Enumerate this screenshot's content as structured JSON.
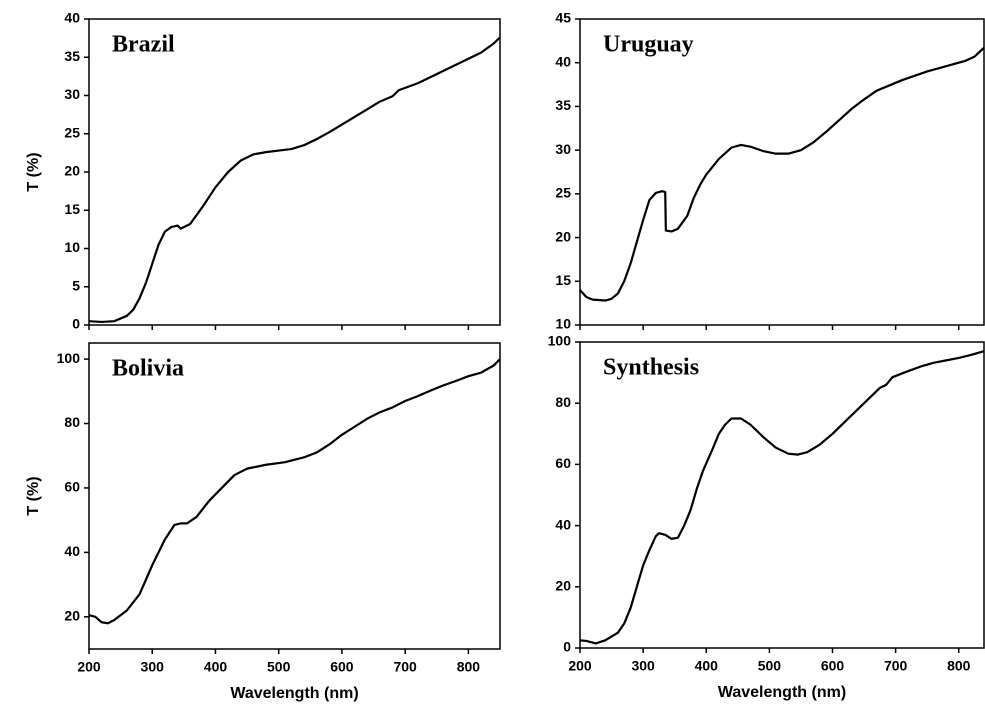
{
  "chart_data": [
    {
      "type": "line",
      "annotation": "Brazil",
      "ylabel": "T (%)",
      "xlim": [
        200,
        850
      ],
      "ylim": [
        0,
        40
      ],
      "xticks": [
        200,
        300,
        400,
        500,
        600,
        700,
        800
      ],
      "show_xtick_labels": false,
      "yticks": [
        0,
        5,
        10,
        15,
        20,
        25,
        30,
        35,
        40
      ],
      "color": "#000000",
      "x": [
        200,
        220,
        240,
        260,
        270,
        280,
        290,
        300,
        310,
        320,
        330,
        340,
        345,
        360,
        380,
        400,
        420,
        440,
        460,
        480,
        500,
        520,
        540,
        560,
        580,
        600,
        620,
        640,
        660,
        680,
        690,
        700,
        720,
        740,
        760,
        780,
        800,
        820,
        840,
        850
      ],
      "values": [
        0.5,
        0.4,
        0.5,
        1.2,
        2,
        3.5,
        5.5,
        8,
        10.5,
        12.2,
        12.8,
        13,
        12.6,
        13.2,
        15.5,
        18,
        20,
        21.5,
        22.3,
        22.6,
        22.8,
        23,
        23.5,
        24.3,
        25.2,
        26.2,
        27.2,
        28.2,
        29.2,
        29.9,
        30.7,
        31,
        31.6,
        32.4,
        33.2,
        34,
        34.8,
        35.6,
        36.8,
        37.6
      ]
    },
    {
      "type": "line",
      "annotation": "Uruguay",
      "xlim": [
        200,
        840
      ],
      "ylim": [
        10,
        45
      ],
      "xticks": [
        200,
        300,
        400,
        500,
        600,
        700,
        800
      ],
      "show_xtick_labels": false,
      "yticks": [
        10,
        15,
        20,
        25,
        30,
        35,
        40,
        45
      ],
      "color": "#000000",
      "x": [
        200,
        210,
        220,
        240,
        250,
        260,
        270,
        280,
        290,
        300,
        310,
        320,
        330,
        335,
        336,
        345,
        355,
        370,
        380,
        390,
        400,
        420,
        440,
        455,
        470,
        490,
        510,
        530,
        550,
        570,
        590,
        610,
        630,
        650,
        670,
        690,
        710,
        730,
        750,
        770,
        790,
        810,
        825,
        840
      ],
      "values": [
        14,
        13.2,
        12.9,
        12.8,
        13,
        13.6,
        15,
        17,
        19.5,
        22,
        24.3,
        25.1,
        25.3,
        25.2,
        20.8,
        20.7,
        21,
        22.5,
        24.5,
        26,
        27.2,
        29,
        30.3,
        30.6,
        30.4,
        29.9,
        29.6,
        29.6,
        30,
        30.9,
        32.1,
        33.4,
        34.7,
        35.8,
        36.8,
        37.4,
        38,
        38.5,
        39,
        39.4,
        39.8,
        40.2,
        40.7,
        41.7
      ]
    },
    {
      "type": "line",
      "annotation": "Bolivia",
      "ylabel": "T (%)",
      "xlabel": "Wavelength (nm)",
      "xlim": [
        200,
        850
      ],
      "ylim": [
        10,
        105
      ],
      "xticks": [
        200,
        300,
        400,
        500,
        600,
        700,
        800
      ],
      "show_xtick_labels": true,
      "yticks": [
        20,
        40,
        60,
        80,
        100
      ],
      "color": "#000000",
      "x": [
        200,
        210,
        220,
        230,
        240,
        260,
        280,
        300,
        320,
        335,
        345,
        355,
        370,
        390,
        410,
        430,
        450,
        480,
        510,
        540,
        560,
        580,
        600,
        620,
        640,
        660,
        680,
        690,
        700,
        720,
        740,
        760,
        780,
        800,
        820,
        840,
        850
      ],
      "values": [
        20.5,
        20,
        18.3,
        18,
        19,
        22,
        27,
        36,
        44,
        48.5,
        49,
        49,
        51,
        56,
        60,
        64,
        66,
        67.2,
        68,
        69.5,
        71,
        73.5,
        76.5,
        79,
        81.5,
        83.5,
        85,
        86,
        87,
        88.5,
        90.2,
        91.8,
        93.2,
        94.7,
        95.8,
        98,
        100
      ]
    },
    {
      "type": "line",
      "annotation": "Synthesis",
      "xlabel": "Wavelength (nm)",
      "xlim": [
        200,
        840
      ],
      "ylim": [
        0,
        100
      ],
      "xticks": [
        200,
        300,
        400,
        500,
        600,
        700,
        800
      ],
      "show_xtick_labels": true,
      "yticks": [
        0,
        20,
        40,
        60,
        80,
        100
      ],
      "color": "#000000",
      "x": [
        200,
        210,
        225,
        240,
        260,
        270,
        280,
        290,
        300,
        310,
        320,
        325,
        335,
        345,
        355,
        365,
        375,
        385,
        395,
        410,
        420,
        430,
        440,
        455,
        470,
        490,
        510,
        530,
        545,
        560,
        580,
        600,
        620,
        640,
        660,
        675,
        685,
        695,
        720,
        740,
        760,
        780,
        800,
        820,
        840
      ],
      "values": [
        2.5,
        2.3,
        1.5,
        2.5,
        5,
        8,
        13,
        20,
        27,
        32,
        36.5,
        37.5,
        37,
        35.7,
        36,
        40,
        45,
        52,
        58,
        65,
        70,
        73,
        75,
        75,
        73,
        69,
        65.5,
        63.5,
        63.2,
        64,
        66.5,
        70,
        74,
        78,
        82,
        85,
        86,
        88.5,
        90.5,
        92,
        93.2,
        94,
        94.8,
        95.8,
        97
      ]
    }
  ]
}
